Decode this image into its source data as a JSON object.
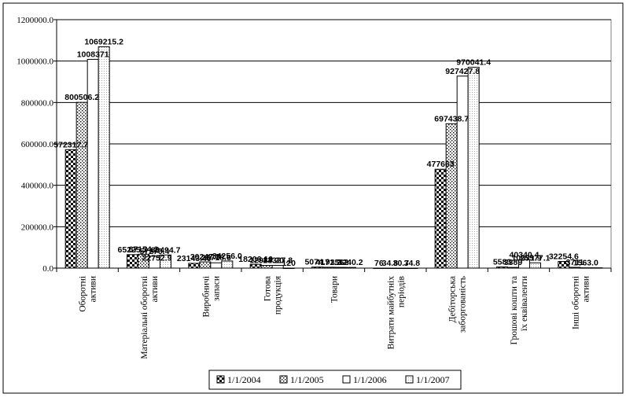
{
  "chart_data": {
    "type": "bar",
    "title": "",
    "xlabel": "",
    "ylabel": "",
    "ylim": [
      0,
      1200000
    ],
    "yticks": [
      0,
      200000,
      400000,
      600000,
      800000,
      1000000,
      1200000
    ],
    "ytick_labels": [
      "0.0",
      "200000.0",
      "400000.0",
      "600000.0",
      "800000.0",
      "1000000.0",
      "1200000.0"
    ],
    "grid": "horizontal",
    "legend_position": "bottom",
    "categories": [
      "Оборотні активи",
      "Матеріальні оборотні активи",
      "Виробничі запаси",
      "Готова продукція",
      "Товари",
      "Витрати майбутніх періодів",
      "Дебіторська заборгованість",
      "Грошові кошти та їх еквіваленти",
      "Інші оборотні активи"
    ],
    "series": [
      {
        "name": "1/1/2004",
        "pattern": "checker",
        "values": [
          572317.7,
          65225.7,
          23143.4,
          18206.1,
          5074.9,
          76,
          477663,
          5583,
          32254.6
        ],
        "labels": [
          "572317.7",
          "65225.7",
          "23143.40",
          "18206.10",
          "5074.9",
          "76",
          "477663",
          "5583",
          "32254.6"
        ]
      },
      {
        "name": "1/1/2005",
        "pattern": "dots",
        "values": [
          800506.2,
          67154.2,
          30247.3,
          12984.2,
          4171.2,
          34.8,
          697438.7,
          3389,
          3711
        ],
        "labels": [
          "800506.2",
          "67154.2",
          "30247.3",
          "12984.20",
          "4171.2",
          "34.8",
          "697438.7",
          "3389",
          "3711"
        ]
      },
      {
        "name": "1/1/2006",
        "pattern": "plain",
        "values": [
          1008371,
          57270.4,
          25718.6,
          13327.8,
          3562,
          30.7,
          927427.8,
          40340.4,
          1563
        ],
        "labels": [
          "1008371",
          "57270.4",
          "25718.6",
          "13327.8",
          "3562",
          "30.7",
          "927427.8",
          "40340.4",
          "1563.0"
        ]
      },
      {
        "name": "1/1/2007",
        "pattern": "fine",
        "values": [
          1069215.2,
          63494.7,
          34256,
          120,
          3240.2,
          34.8,
          970041.4,
          25577.1,
          1563
        ],
        "labels": [
          "1069215.2",
          "63494.7",
          "34256.0",
          "120",
          "3240.2",
          "34.8",
          "970041.4",
          "25577.1",
          ""
        ]
      }
    ],
    "extra_labels": [
      "22752.9",
      "10071.9"
    ]
  }
}
